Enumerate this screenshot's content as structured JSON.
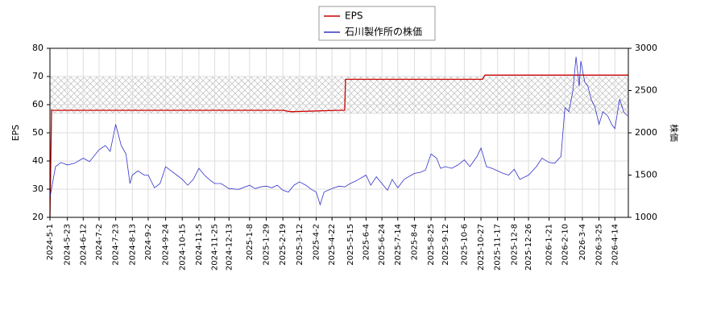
{
  "chart_data": {
    "type": "line",
    "xlim": [
      "2024-5-1",
      "2026-5-1"
    ],
    "xticks": [
      "2024-5-1",
      "2024-5-23",
      "2024-6-12",
      "2024-7-2",
      "2024-7-23",
      "2024-8-13",
      "2024-9-2",
      "2024-9-24",
      "2024-10-15",
      "2024-11-5",
      "2024-11-25",
      "2024-12-13",
      "2025-1-8",
      "2025-1-29",
      "2025-2-19",
      "2025-3-12",
      "2025-4-2",
      "2025-4-22",
      "2025-5-15",
      "2025-6-4",
      "2025-6-24",
      "2025-7-14",
      "2025-8-4",
      "2025-8-25",
      "2025-9-12",
      "2025-10-6",
      "2025-10-27",
      "2025-11-17",
      "2025-12-8",
      "2025-12-26",
      "2026-1-21",
      "2026-2-10",
      "2026-3-4",
      "2026-3-25",
      "2026-4-14"
    ],
    "y_label": "EPS",
    "y2_label": "株価",
    "ylim": [
      20,
      80
    ],
    "yticks": [
      20,
      30,
      40,
      50,
      60,
      70,
      80
    ],
    "y2lim": [
      1000,
      3000
    ],
    "y2ticks": [
      1000,
      1500,
      2000,
      2500,
      3000
    ],
    "grid": true,
    "legend": "top",
    "shaded_range": [
      57,
      70
    ],
    "series": [
      {
        "name": "EPS",
        "color": "#cc0000",
        "x": [
          "2024-5-1",
          "2024-5-3",
          "2025-2-19",
          "2025-3-1",
          "2025-4-30",
          "2025-5-8",
          "2025-5-9",
          "2025-10-29",
          "2025-11-1",
          "2026-5-1"
        ],
        "values": [
          20,
          58,
          58,
          57.5,
          58,
          58,
          69,
          69,
          70.5,
          70.5
        ]
      },
      {
        "name": "石川製作所の株価",
        "color": "#3333cc",
        "axis": "y2",
        "x": [
          "2024-5-1",
          "2024-5-8",
          "2024-5-15",
          "2024-5-23",
          "2024-6-1",
          "2024-6-12",
          "2024-6-20",
          "2024-7-2",
          "2024-7-10",
          "2024-7-16",
          "2024-7-23",
          "2024-7-30",
          "2024-8-5",
          "2024-8-10",
          "2024-8-13",
          "2024-8-20",
          "2024-8-28",
          "2024-9-2",
          "2024-9-10",
          "2024-9-17",
          "2024-9-24",
          "2024-10-1",
          "2024-10-8",
          "2024-10-15",
          "2024-10-22",
          "2024-10-29",
          "2024-11-5",
          "2024-11-12",
          "2024-11-19",
          "2024-11-25",
          "2024-12-3",
          "2024-12-13",
          "2024-12-25",
          "2025-1-8",
          "2025-1-15",
          "2025-1-22",
          "2025-1-29",
          "2025-2-5",
          "2025-2-12",
          "2025-2-19",
          "2025-2-26",
          "2025-3-5",
          "2025-3-12",
          "2025-3-20",
          "2025-3-27",
          "2025-4-2",
          "2025-4-7",
          "2025-4-12",
          "2025-4-22",
          "2025-5-1",
          "2025-5-8",
          "2025-5-15",
          "2025-5-22",
          "2025-6-4",
          "2025-6-10",
          "2025-6-17",
          "2025-6-24",
          "2025-7-1",
          "2025-7-7",
          "2025-7-14",
          "2025-7-22",
          "2025-8-4",
          "2025-8-11",
          "2025-8-18",
          "2025-8-25",
          "2025-9-1",
          "2025-9-6",
          "2025-9-12",
          "2025-9-20",
          "2025-9-28",
          "2025-10-6",
          "2025-10-13",
          "2025-10-22",
          "2025-10-27",
          "2025-11-3",
          "2025-11-10",
          "2025-11-17",
          "2025-11-24",
          "2025-12-1",
          "2025-12-8",
          "2025-12-15",
          "2025-12-26",
          "2026-1-5",
          "2026-1-12",
          "2026-1-21",
          "2026-1-28",
          "2026-2-5",
          "2026-2-10",
          "2026-2-15",
          "2026-2-20",
          "2026-2-24",
          "2026-2-28",
          "2026-3-2",
          "2026-3-7",
          "2026-3-11",
          "2026-3-15",
          "2026-3-20",
          "2026-3-25",
          "2026-3-30",
          "2026-4-5",
          "2026-4-10",
          "2026-4-14",
          "2026-4-20",
          "2026-4-25",
          "2026-4-30"
        ],
        "values": [
          1230,
          1600,
          1650,
          1620,
          1640,
          1700,
          1660,
          1800,
          1850,
          1780,
          2100,
          1850,
          1750,
          1400,
          1500,
          1550,
          1500,
          1500,
          1350,
          1400,
          1600,
          1550,
          1500,
          1450,
          1380,
          1450,
          1580,
          1500,
          1440,
          1400,
          1400,
          1340,
          1330,
          1380,
          1340,
          1360,
          1370,
          1350,
          1380,
          1320,
          1300,
          1380,
          1420,
          1380,
          1330,
          1300,
          1150,
          1300,
          1340,
          1370,
          1360,
          1400,
          1430,
          1500,
          1380,
          1480,
          1400,
          1320,
          1450,
          1350,
          1450,
          1520,
          1530,
          1560,
          1750,
          1700,
          1580,
          1600,
          1580,
          1620,
          1680,
          1600,
          1720,
          1820,
          1600,
          1580,
          1550,
          1520,
          1500,
          1570,
          1450,
          1500,
          1600,
          1700,
          1650,
          1640,
          1720,
          2300,
          2250,
          2500,
          2900,
          2550,
          2850,
          2600,
          2550,
          2400,
          2300,
          2100,
          2250,
          2200,
          2100,
          2050,
          2400,
          2250,
          2200
        ]
      }
    ]
  }
}
